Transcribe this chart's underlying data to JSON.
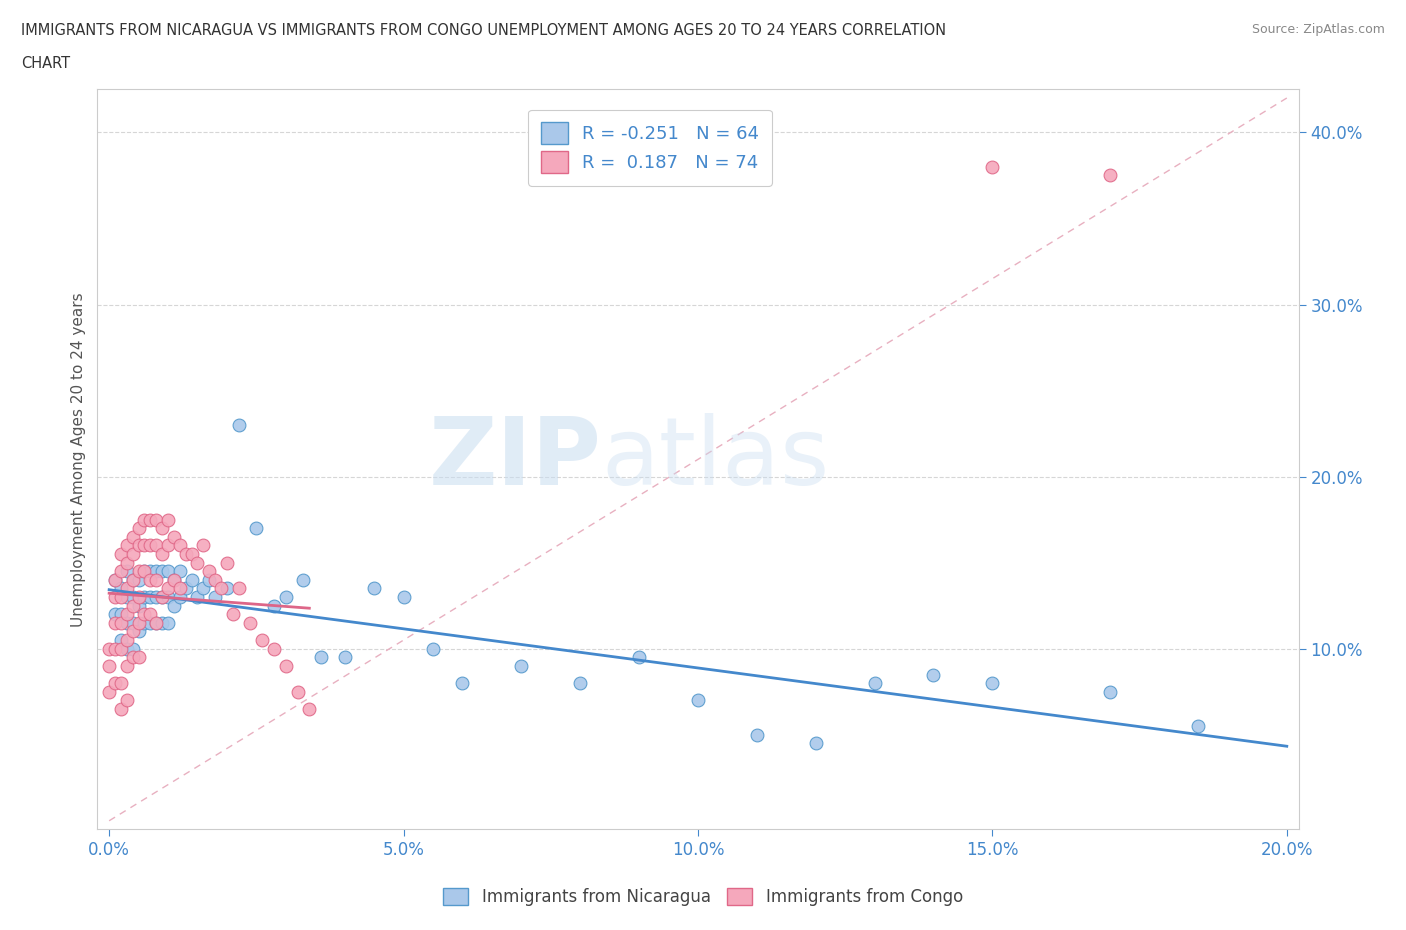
{
  "title_line1": "IMMIGRANTS FROM NICARAGUA VS IMMIGRANTS FROM CONGO UNEMPLOYMENT AMONG AGES 20 TO 24 YEARS CORRELATION",
  "title_line2": "CHART",
  "source": "Source: ZipAtlas.com",
  "ylabel": "Unemployment Among Ages 20 to 24 years",
  "xlim": [
    -0.002,
    0.202
  ],
  "ylim": [
    -0.005,
    0.425
  ],
  "xticks": [
    0.0,
    0.05,
    0.1,
    0.15,
    0.2
  ],
  "yticks": [
    0.1,
    0.2,
    0.3,
    0.4
  ],
  "xtick_labels": [
    "0.0%",
    "5.0%",
    "10.0%",
    "15.0%",
    "20.0%"
  ],
  "ytick_labels": [
    "10.0%",
    "20.0%",
    "30.0%",
    "40.0%"
  ],
  "nicaragua_color": "#aac8ea",
  "congo_color": "#f5a8bc",
  "nicaragua_edge_color": "#5599cc",
  "congo_edge_color": "#e06888",
  "nicaragua_line_color": "#4488cc",
  "congo_line_color": "#dd6688",
  "diag_line_color": "#e8b0c0",
  "R_nicaragua": -0.251,
  "N_nicaragua": 64,
  "R_congo": 0.187,
  "N_congo": 74,
  "legend_label_nicaragua": "Immigrants from Nicaragua",
  "legend_label_congo": "Immigrants from Congo",
  "watermark_zip": "ZIP",
  "watermark_atlas": "atlas",
  "nicaragua_scatter_x": [
    0.001,
    0.001,
    0.002,
    0.002,
    0.002,
    0.003,
    0.003,
    0.003,
    0.003,
    0.004,
    0.004,
    0.004,
    0.004,
    0.005,
    0.005,
    0.005,
    0.006,
    0.006,
    0.006,
    0.007,
    0.007,
    0.007,
    0.008,
    0.008,
    0.008,
    0.009,
    0.009,
    0.009,
    0.01,
    0.01,
    0.01,
    0.011,
    0.011,
    0.012,
    0.012,
    0.013,
    0.014,
    0.015,
    0.016,
    0.017,
    0.018,
    0.02,
    0.022,
    0.025,
    0.028,
    0.03,
    0.033,
    0.036,
    0.04,
    0.045,
    0.05,
    0.055,
    0.06,
    0.07,
    0.08,
    0.09,
    0.1,
    0.11,
    0.12,
    0.13,
    0.14,
    0.15,
    0.17,
    0.185
  ],
  "nicaragua_scatter_y": [
    0.14,
    0.12,
    0.135,
    0.12,
    0.105,
    0.145,
    0.13,
    0.115,
    0.1,
    0.14,
    0.13,
    0.115,
    0.1,
    0.14,
    0.125,
    0.11,
    0.145,
    0.13,
    0.115,
    0.145,
    0.13,
    0.115,
    0.145,
    0.13,
    0.115,
    0.145,
    0.13,
    0.115,
    0.145,
    0.13,
    0.115,
    0.14,
    0.125,
    0.145,
    0.13,
    0.135,
    0.14,
    0.13,
    0.135,
    0.14,
    0.13,
    0.135,
    0.23,
    0.17,
    0.125,
    0.13,
    0.14,
    0.095,
    0.095,
    0.135,
    0.13,
    0.1,
    0.08,
    0.09,
    0.08,
    0.095,
    0.07,
    0.05,
    0.045,
    0.08,
    0.085,
    0.08,
    0.075,
    0.055
  ],
  "congo_scatter_x": [
    0.0,
    0.0,
    0.0,
    0.001,
    0.001,
    0.001,
    0.001,
    0.001,
    0.002,
    0.002,
    0.002,
    0.002,
    0.002,
    0.002,
    0.002,
    0.003,
    0.003,
    0.003,
    0.003,
    0.003,
    0.003,
    0.003,
    0.004,
    0.004,
    0.004,
    0.004,
    0.004,
    0.004,
    0.005,
    0.005,
    0.005,
    0.005,
    0.005,
    0.005,
    0.006,
    0.006,
    0.006,
    0.006,
    0.007,
    0.007,
    0.007,
    0.007,
    0.008,
    0.008,
    0.008,
    0.008,
    0.009,
    0.009,
    0.009,
    0.01,
    0.01,
    0.01,
    0.011,
    0.011,
    0.012,
    0.012,
    0.013,
    0.014,
    0.015,
    0.016,
    0.017,
    0.018,
    0.019,
    0.02,
    0.021,
    0.022,
    0.024,
    0.026,
    0.028,
    0.03,
    0.032,
    0.034,
    0.15,
    0.17
  ],
  "congo_scatter_y": [
    0.1,
    0.09,
    0.075,
    0.14,
    0.13,
    0.115,
    0.1,
    0.08,
    0.155,
    0.145,
    0.13,
    0.115,
    0.1,
    0.08,
    0.065,
    0.16,
    0.15,
    0.135,
    0.12,
    0.105,
    0.09,
    0.07,
    0.165,
    0.155,
    0.14,
    0.125,
    0.11,
    0.095,
    0.17,
    0.16,
    0.145,
    0.13,
    0.115,
    0.095,
    0.175,
    0.16,
    0.145,
    0.12,
    0.175,
    0.16,
    0.14,
    0.12,
    0.175,
    0.16,
    0.14,
    0.115,
    0.17,
    0.155,
    0.13,
    0.175,
    0.16,
    0.135,
    0.165,
    0.14,
    0.16,
    0.135,
    0.155,
    0.155,
    0.15,
    0.16,
    0.145,
    0.14,
    0.135,
    0.15,
    0.12,
    0.135,
    0.115,
    0.105,
    0.1,
    0.09,
    0.075,
    0.065,
    0.38,
    0.375
  ]
}
